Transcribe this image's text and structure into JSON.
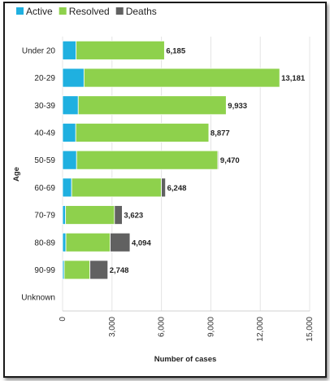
{
  "chart_data": {
    "type": "bar",
    "orientation": "horizontal",
    "stacked": true,
    "categories": [
      "Under 20",
      "20-29",
      "30-39",
      "40-49",
      "50-59",
      "60-69",
      "70-79",
      "80-89",
      "90-99",
      "Unknown"
    ],
    "series": [
      {
        "name": "Active",
        "color": "#1fb0e0",
        "values": [
          820,
          1300,
          950,
          800,
          850,
          550,
          180,
          200,
          100,
          0
        ]
      },
      {
        "name": "Resolved",
        "color": "#8ed14c",
        "values": [
          5365,
          11881,
          8983,
          8077,
          8570,
          5450,
          2970,
          2690,
          1560,
          0
        ]
      },
      {
        "name": "Deaths",
        "color": "#616161",
        "values": [
          0,
          0,
          0,
          0,
          50,
          248,
          473,
          1204,
          1088,
          0
        ]
      }
    ],
    "totals": [
      "6,185",
      "13,181",
      "9,933",
      "8,877",
      "9,470",
      "6,248",
      "3,623",
      "4,094",
      "2,748",
      ""
    ],
    "x_ticks": [
      "0",
      "3,000",
      "6,000",
      "9,000",
      "12,000",
      "15,000"
    ],
    "xlim": [
      0,
      15000
    ],
    "xlabel": "Number of cases",
    "ylabel": "Age",
    "grid": true,
    "legend": "top-left"
  }
}
